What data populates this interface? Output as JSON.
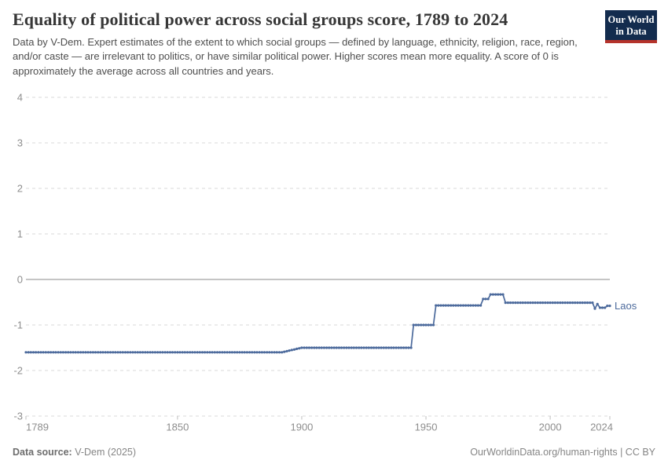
{
  "header": {
    "title": "Equality of political power across social groups score, 1789 to 2024",
    "subtitle": "Data by V-Dem. Expert estimates of the extent to which social groups — defined by language, ethnicity, religion, race, region, and/or caste — are irrelevant to politics, or have similar political power. Higher scores mean more equality. A score of 0 is approximately the average across all countries and years."
  },
  "logo": {
    "line1": "Our World",
    "line2": "in Data",
    "bg_color": "#132C4E",
    "accent_color": "#B5332B"
  },
  "footer": {
    "source_label": "Data source:",
    "source_value": "V-Dem (2025)",
    "attribution": "OurWorldinData.org/human-rights | CC BY"
  },
  "chart_data": {
    "type": "line",
    "title": "Equality of political power across social groups score, 1789 to 2024",
    "xlabel": "",
    "ylabel": "",
    "x": {
      "range": [
        1789,
        2024
      ],
      "ticks": [
        1789,
        1850,
        1900,
        1950,
        2000,
        2024
      ]
    },
    "y": {
      "range": [
        -3,
        4
      ],
      "ticks": [
        4,
        3,
        2,
        1,
        0,
        -1,
        -2,
        -3
      ],
      "zero_line_solid": true
    },
    "grid": {
      "visible": true,
      "style": "dashed"
    },
    "legend_position": "end-of-line",
    "series": [
      {
        "name": "Laos",
        "color": "#4C6A9C",
        "markers_every_year": true,
        "breakpoints": [
          [
            1789,
            -1.6
          ],
          [
            1892,
            -1.6
          ],
          [
            1900,
            -1.5
          ],
          [
            1944,
            -1.5
          ],
          [
            1945,
            -1.0
          ],
          [
            1953,
            -1.0
          ],
          [
            1954,
            -0.57
          ],
          [
            1972,
            -0.57
          ],
          [
            1973,
            -0.43
          ],
          [
            1975,
            -0.43
          ],
          [
            1976,
            -0.33
          ],
          [
            1981,
            -0.33
          ],
          [
            1982,
            -0.51
          ],
          [
            2016,
            -0.51
          ],
          [
            2017,
            -0.51
          ],
          [
            2018,
            -0.64
          ],
          [
            2019,
            -0.54
          ],
          [
            2020,
            -0.62
          ],
          [
            2022,
            -0.62
          ],
          [
            2023,
            -0.58
          ],
          [
            2024,
            -0.58
          ]
        ]
      }
    ],
    "axis_colors": {
      "tick_label": "#8e8e8e",
      "gridline": "#dadada",
      "zero_line": "#8b8b8b",
      "tick_mark": "#bfbfbf"
    }
  }
}
